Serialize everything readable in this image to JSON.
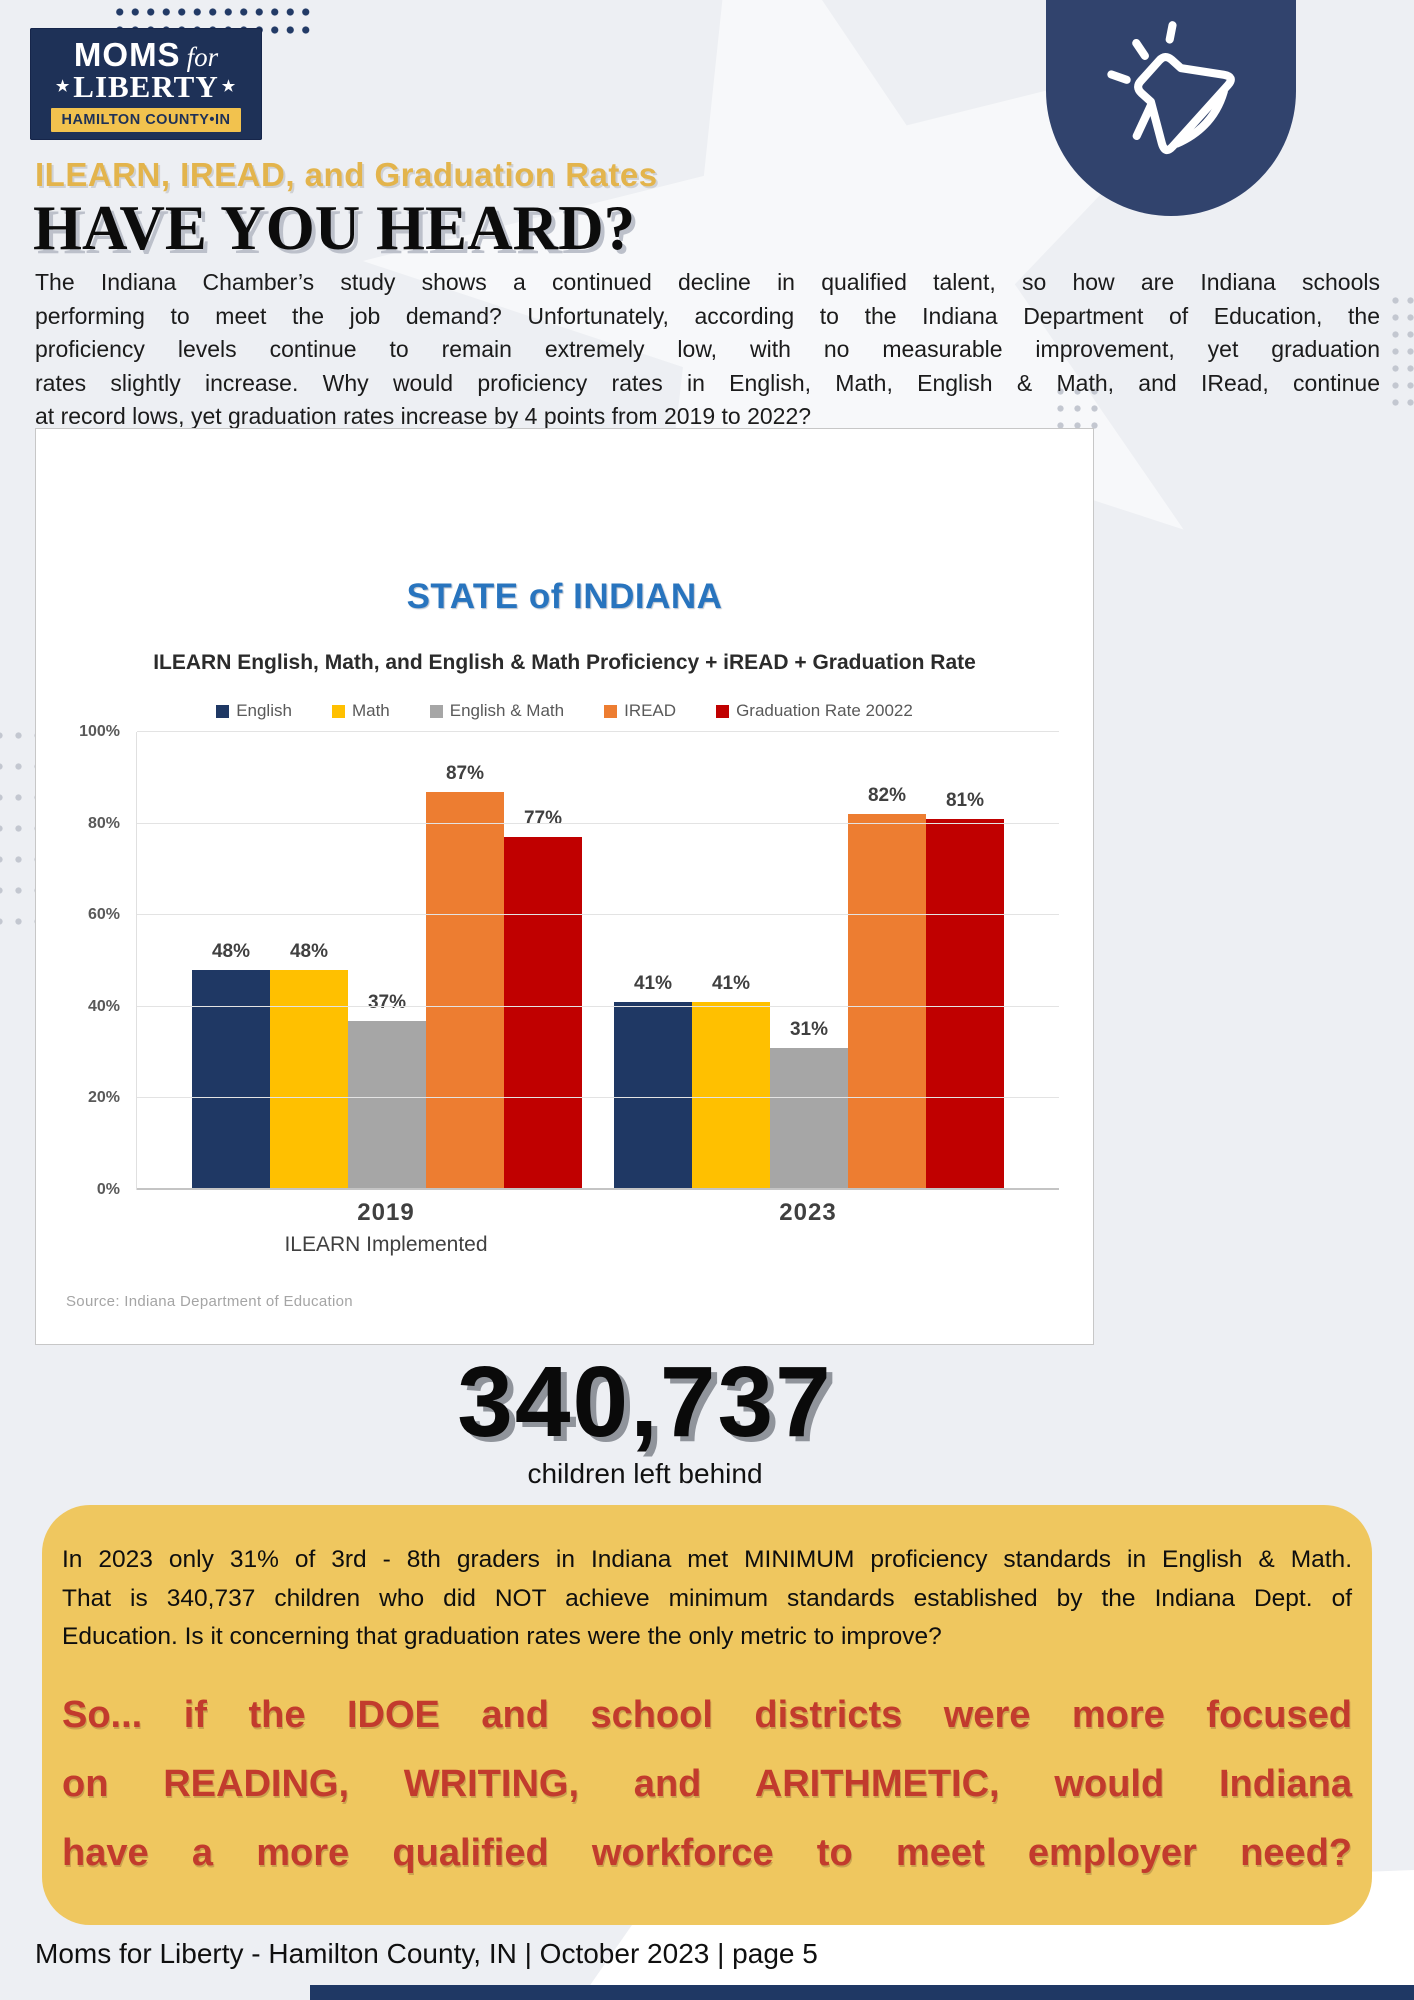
{
  "page": {
    "background": "#edeff3",
    "footer": "Moms for Liberty - Hamilton County, IN | October 2023 | page 5"
  },
  "logo": {
    "name": "Moms for Liberty",
    "word1": "MOMS",
    "word2": "for",
    "word3": "LIBERTY",
    "star": "★",
    "banner": "HAMILTON COUNTY•IN",
    "colors": {
      "background": "#1E3157",
      "banner_background": "#F2C24E"
    }
  },
  "badge": {
    "icon": "megaphone-icon",
    "background": "#31436D"
  },
  "header": {
    "kicker": "ILEARN, IREAD, and Graduation Rates",
    "kicker_color": "#E3B44C",
    "title": "HAVE YOU HEARD?"
  },
  "intro_lines": [
    "The Indiana Chamber’s study shows a continued decline in qualified talent, so how are Indiana schools",
    "performing to meet the job demand? Unfortunately, according to the Indiana Department of Education, the",
    "proficiency levels continue to remain extremely low, with no measurable improvement, yet graduation",
    "rates slightly increase. Why would proficiency rates in English, Math, English & Math, and IRead, continue",
    "at record lows, yet graduation rates increase by 4 points from 2019 to 2022?"
  ],
  "chart_data": {
    "type": "bar",
    "title": "STATE of INDIANA",
    "subtitle": "ILEARN English, Math, and English & Math Proficiency + iREAD + Graduation Rate",
    "categories": [
      "2019",
      "2023"
    ],
    "category_sublabels": [
      "ILEARN Implemented",
      ""
    ],
    "series": [
      {
        "name": "English",
        "color": "#1F3864",
        "values": [
          48,
          41
        ]
      },
      {
        "name": "Math",
        "color": "#FFC000",
        "values": [
          48,
          41
        ]
      },
      {
        "name": "English & Math",
        "color": "#A6A6A6",
        "values": [
          37,
          31
        ]
      },
      {
        "name": "IREAD",
        "color": "#ED7D31",
        "values": [
          87,
          82
        ]
      },
      {
        "name": "Graduation Rate 20022",
        "color": "#C00000",
        "values": [
          77,
          81
        ]
      }
    ],
    "xlabel": "",
    "ylabel": "",
    "ylim": [
      0,
      100
    ],
    "yticks": [
      "100%",
      "80%",
      "60%",
      "40%",
      "20%",
      "0%"
    ],
    "grid": true,
    "legend_position": "top",
    "data_labels": true,
    "source": "Source: Indiana Department of Education",
    "title_color": "#2874BE"
  },
  "stat": {
    "number": "340,737",
    "caption": "children left behind"
  },
  "callout": {
    "background": "#EFC75F",
    "paragraph_lines": [
      "In 2023 only 31% of 3rd - 8th graders in Indiana met MINIMUM proficiency standards in English & Math.",
      "That is 340,737 children who did NOT achieve minimum standards established by the Indiana Dept. of",
      "Education. Is it concerning that graduation rates were the only metric to improve?"
    ],
    "question_lines": [
      "So... if the IDOE and school districts were more focused",
      "on READING, WRITING, and ARITHMETIC, would Indiana",
      "have a more qualified workforce to meet employer need?"
    ],
    "question_color": "#C23B2D"
  }
}
